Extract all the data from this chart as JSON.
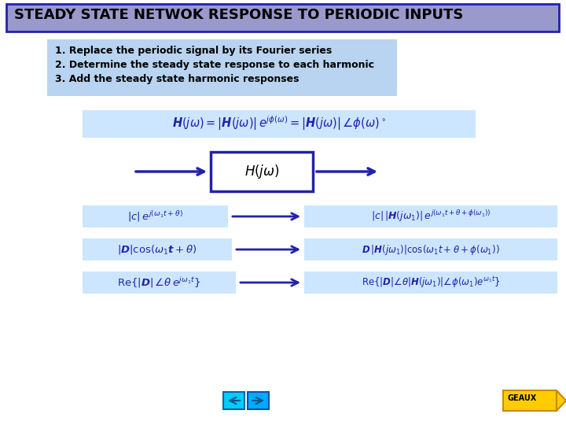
{
  "title": "STEADY STATE NETWOK RESPONSE TO PERIODIC INPUTS",
  "title_bg": "#9999cc",
  "title_border": "#3333aa",
  "bg_color": "white",
  "light_blue": "#cce6ff",
  "dark_blue": "#2222aa",
  "steps_bg": "#b8d4f0",
  "steps": [
    "1. Replace the periodic signal by its Fourier series",
    "2. Determine the steady state response to each harmonic",
    "3. Add the steady state harmonic responses"
  ],
  "box_label": "$H(j\\omega)$",
  "formula_top": "$\\boldsymbol{H}(j\\omega)=|\\boldsymbol{H}(j\\omega)|\\,e^{j\\phi(\\omega)}=|\\boldsymbol{H}(j\\omega)|\\,\\angle\\phi(\\omega)^\\circ$",
  "row1_left": "$|c|\\,e^{j(\\omega_1 t+\\theta)}$",
  "row1_right": "$|c|\\,|\\boldsymbol{H}(j\\omega_1)|\\,e^{j(\\omega_1 t+\\theta+\\phi(\\omega_1))}$",
  "row2_left": "$|\\boldsymbol{D}|\\cos(\\omega_1\\boldsymbol{t}+\\theta)$",
  "row2_right": "$\\boldsymbol{D}\\,|\\boldsymbol{H}(j\\omega_1)|\\cos(\\omega_1 t+\\theta+\\phi(\\omega_1))$",
  "row3_left": "$\\mathrm{Re}\\{|\\boldsymbol{D}|\\,\\angle\\theta\\, e^{j\\omega_1 t}\\}$",
  "row3_right": "$\\mathrm{Re}\\{|\\boldsymbol{D}|\\angle\\theta|\\boldsymbol{H}(j\\omega_1)|\\angle\\phi(\\omega_1)e^{\\omega_1 t}\\}$",
  "nav_left_color": "#00ccff",
  "nav_right_color": "#00aaff",
  "geaux_color": "#ffcc00",
  "geaux_border": "#cc8800"
}
